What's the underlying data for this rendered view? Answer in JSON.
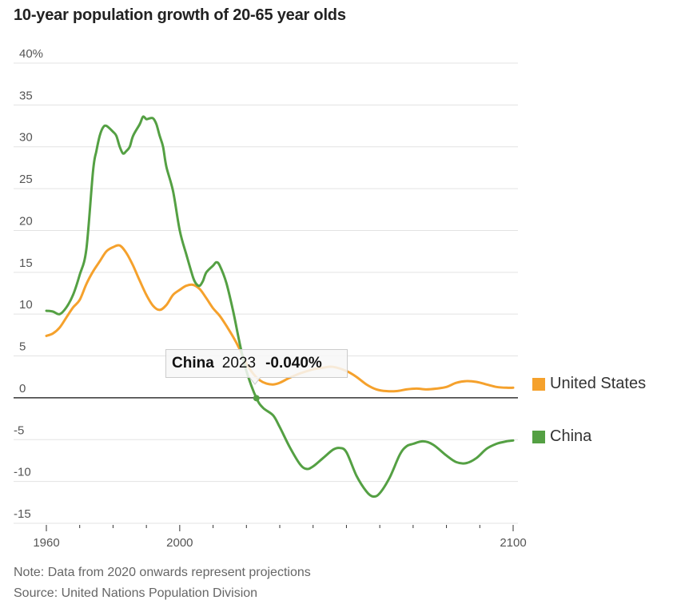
{
  "title": "10-year population growth of 20-65 year olds",
  "colors": {
    "united_states": "#F5A12C",
    "china": "#54A043",
    "grid": "#e3e3e3",
    "zero_line": "#333333"
  },
  "chart_data": {
    "type": "line",
    "title": "10-year population growth of 20-65 year olds",
    "xlabel": "",
    "ylabel": "",
    "xlim": [
      1960,
      2100
    ],
    "ylim": [
      -15,
      40
    ],
    "y_ticks": [
      40,
      35,
      30,
      25,
      20,
      15,
      10,
      5,
      0,
      -5,
      -10,
      -15
    ],
    "y_tick_labels": [
      "40%",
      "35",
      "30",
      "25",
      "20",
      "15",
      "10",
      "5",
      "0",
      "-5",
      "-10",
      "-15"
    ],
    "x_tick_years": [
      1960,
      1970,
      1980,
      1990,
      2000,
      2010,
      2020,
      2030,
      2040,
      2050,
      2060,
      2070,
      2080,
      2090,
      2100
    ],
    "x_tick_labels": [
      {
        "year": 1960,
        "label": "1960"
      },
      {
        "year": 2000,
        "label": "2000"
      },
      {
        "year": 2100,
        "label": "2100"
      }
    ],
    "grid": true,
    "legend_position": "right",
    "series": [
      {
        "name": "United States",
        "color": "#F5A12C",
        "points": [
          [
            1960,
            7.4
          ],
          [
            1962,
            7.7
          ],
          [
            1964,
            8.4
          ],
          [
            1966,
            9.6
          ],
          [
            1968,
            10.8
          ],
          [
            1970,
            11.7
          ],
          [
            1972,
            13.6
          ],
          [
            1974,
            15.1
          ],
          [
            1976,
            16.3
          ],
          [
            1978,
            17.5
          ],
          [
            1980,
            18.0
          ],
          [
            1982,
            18.2
          ],
          [
            1984,
            17.3
          ],
          [
            1986,
            15.8
          ],
          [
            1988,
            14.0
          ],
          [
            1990,
            12.3
          ],
          [
            1992,
            11.0
          ],
          [
            1994,
            10.5
          ],
          [
            1996,
            11.1
          ],
          [
            1998,
            12.3
          ],
          [
            2000,
            12.9
          ],
          [
            2002,
            13.4
          ],
          [
            2004,
            13.5
          ],
          [
            2006,
            13.0
          ],
          [
            2008,
            11.9
          ],
          [
            2010,
            10.7
          ],
          [
            2012,
            9.8
          ],
          [
            2014,
            8.6
          ],
          [
            2016,
            7.3
          ],
          [
            2018,
            5.8
          ],
          [
            2020,
            4.1
          ],
          [
            2022,
            2.9
          ],
          [
            2024,
            2.1
          ],
          [
            2026,
            1.7
          ],
          [
            2028,
            1.6
          ],
          [
            2030,
            1.8
          ],
          [
            2033,
            2.4
          ],
          [
            2036,
            2.9
          ],
          [
            2040,
            3.4
          ],
          [
            2043,
            3.6
          ],
          [
            2046,
            3.7
          ],
          [
            2050,
            3.2
          ],
          [
            2053,
            2.5
          ],
          [
            2056,
            1.6
          ],
          [
            2059,
            1.0
          ],
          [
            2062,
            0.8
          ],
          [
            2065,
            0.8
          ],
          [
            2068,
            1.0
          ],
          [
            2071,
            1.1
          ],
          [
            2074,
            1.0
          ],
          [
            2077,
            1.1
          ],
          [
            2080,
            1.3
          ],
          [
            2083,
            1.8
          ],
          [
            2086,
            2.0
          ],
          [
            2089,
            1.9
          ],
          [
            2092,
            1.6
          ],
          [
            2095,
            1.3
          ],
          [
            2098,
            1.2
          ],
          [
            2100,
            1.2
          ]
        ]
      },
      {
        "name": "China",
        "color": "#54A043",
        "points": [
          [
            1960,
            10.4
          ],
          [
            1962,
            10.3
          ],
          [
            1964,
            10.0
          ],
          [
            1966,
            10.8
          ],
          [
            1968,
            12.3
          ],
          [
            1970,
            14.7
          ],
          [
            1972,
            17.8
          ],
          [
            1974,
            27.1
          ],
          [
            1975,
            29.5
          ],
          [
            1976,
            31.3
          ],
          [
            1977,
            32.3
          ],
          [
            1978,
            32.5
          ],
          [
            1980,
            31.8
          ],
          [
            1981,
            31.3
          ],
          [
            1982,
            30.0
          ],
          [
            1983,
            29.2
          ],
          [
            1984,
            29.5
          ],
          [
            1985,
            30.0
          ],
          [
            1986,
            31.3
          ],
          [
            1988,
            32.7
          ],
          [
            1989,
            33.6
          ],
          [
            1990,
            33.3
          ],
          [
            1991,
            33.4
          ],
          [
            1992,
            33.4
          ],
          [
            1993,
            32.7
          ],
          [
            1994,
            31.3
          ],
          [
            1995,
            30.0
          ],
          [
            1996,
            27.6
          ],
          [
            1998,
            24.7
          ],
          [
            2000,
            20.0
          ],
          [
            2002,
            17.1
          ],
          [
            2004,
            14.4
          ],
          [
            2005,
            13.6
          ],
          [
            2006,
            13.4
          ],
          [
            2007,
            14.0
          ],
          [
            2008,
            15.0
          ],
          [
            2010,
            15.8
          ],
          [
            2011,
            16.2
          ],
          [
            2012,
            15.8
          ],
          [
            2014,
            13.7
          ],
          [
            2016,
            10.4
          ],
          [
            2018,
            6.5
          ],
          [
            2020,
            3.2
          ],
          [
            2023,
            -0.04
          ],
          [
            2025,
            -1.2
          ],
          [
            2028,
            -2.1
          ],
          [
            2030,
            -3.5
          ],
          [
            2033,
            -5.9
          ],
          [
            2036,
            -7.9
          ],
          [
            2038,
            -8.5
          ],
          [
            2040,
            -8.2
          ],
          [
            2043,
            -7.2
          ],
          [
            2046,
            -6.2
          ],
          [
            2048,
            -6.0
          ],
          [
            2050,
            -6.5
          ],
          [
            2053,
            -9.3
          ],
          [
            2056,
            -11.2
          ],
          [
            2058,
            -11.8
          ],
          [
            2060,
            -11.4
          ],
          [
            2063,
            -9.5
          ],
          [
            2066,
            -6.8
          ],
          [
            2068,
            -5.8
          ],
          [
            2070,
            -5.5
          ],
          [
            2073,
            -5.2
          ],
          [
            2076,
            -5.6
          ],
          [
            2080,
            -6.9
          ],
          [
            2083,
            -7.7
          ],
          [
            2086,
            -7.8
          ],
          [
            2089,
            -7.2
          ],
          [
            2092,
            -6.1
          ],
          [
            2095,
            -5.5
          ],
          [
            2098,
            -5.2
          ],
          [
            2100,
            -5.1
          ]
        ]
      }
    ],
    "annotations": [
      {
        "type": "tooltip",
        "series": "China",
        "year": 2023,
        "value": -0.04,
        "text_name": "China",
        "text_year": "2023",
        "text_value": "-0.040%"
      }
    ]
  },
  "legend": [
    {
      "label": "United States",
      "color": "#F5A12C"
    },
    {
      "label": "China",
      "color": "#54A043"
    }
  ],
  "tooltip": {
    "name": "China",
    "year": "2023",
    "value": "-0.040%"
  },
  "footer": {
    "note": "Note: Data from 2020 onwards represent projections",
    "source": "Source: United Nations Population Division"
  }
}
